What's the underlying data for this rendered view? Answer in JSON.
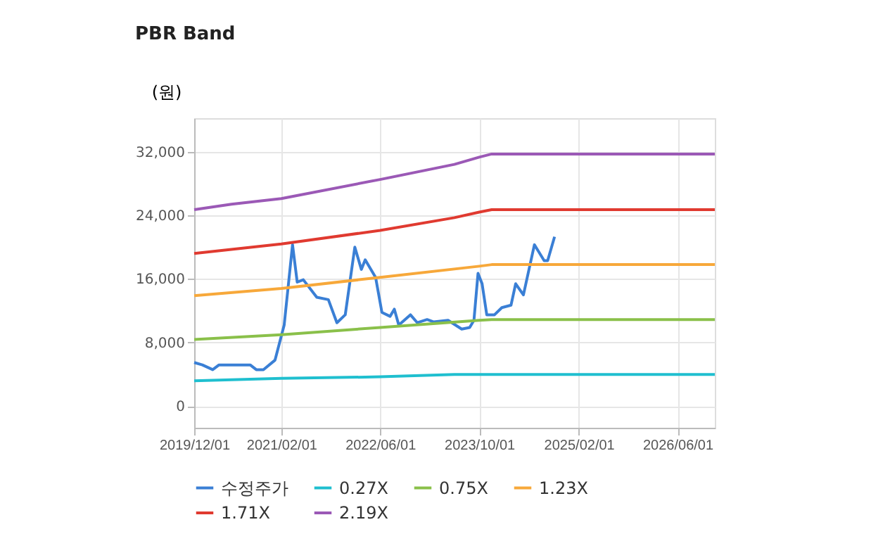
{
  "chart_data": {
    "type": "line",
    "title": "PBR Band",
    "ylabel": "(원)",
    "xlim": [
      "2019-12-01",
      "2026-12-01"
    ],
    "ylim": [
      -2700,
      36200
    ],
    "xticks": [
      {
        "value": "2019-12-01",
        "label": "2019/12/01"
      },
      {
        "value": "2021-02-01",
        "label": "2021/02/01"
      },
      {
        "value": "2022-06-01",
        "label": "2022/06/01"
      },
      {
        "value": "2023-10-01",
        "label": "2023/10/01"
      },
      {
        "value": "2025-02-01",
        "label": "2025/02/01"
      },
      {
        "value": "2026-06-01",
        "label": "2026/06/01"
      }
    ],
    "yticks": [
      0,
      {
        "value": 8000,
        "label": "8,000"
      },
      {
        "value": 16000,
        "label": "16,000"
      },
      {
        "value": 24000,
        "label": "24,000"
      },
      {
        "value": 32000,
        "label": "32,000"
      }
    ],
    "grid": true,
    "legend": "bottom",
    "marker": "none",
    "line_style": "solid",
    "series": [
      {
        "name": "수정주가",
        "color": "#3a7fd5",
        "x": [
          "2019-12-01",
          "2020-01-10",
          "2020-03-01",
          "2020-04-01",
          "2020-09-01",
          "2020-10-01",
          "2020-11-05",
          "2021-01-01",
          "2021-02-15",
          "2021-03-28",
          "2021-04-20",
          "2021-05-20",
          "2021-07-25",
          "2021-09-20",
          "2021-11-01",
          "2021-12-12",
          "2022-01-28",
          "2022-03-01",
          "2022-03-20",
          "2022-05-10",
          "2022-06-10",
          "2022-07-20",
          "2022-08-10",
          "2022-09-01",
          "2022-10-28",
          "2022-12-01",
          "2023-01-18",
          "2023-02-20",
          "2023-05-01",
          "2023-07-07",
          "2023-08-15",
          "2023-09-05",
          "2023-09-25",
          "2023-10-15",
          "2023-11-07",
          "2023-12-15",
          "2024-01-20",
          "2024-03-05",
          "2024-03-28",
          "2024-05-05",
          "2024-06-28",
          "2024-08-15",
          "2024-09-01",
          "2024-10-05"
        ],
        "values": [
          5500,
          5200,
          4600,
          5200,
          5200,
          4600,
          4600,
          5800,
          10200,
          20300,
          15600,
          15900,
          13700,
          13400,
          10500,
          11500,
          20000,
          17200,
          18400,
          16200,
          11800,
          11300,
          12200,
          10200,
          11500,
          10500,
          10900,
          10600,
          10800,
          9700,
          9900,
          10800,
          16700,
          15400,
          11500,
          11500,
          12400,
          12700,
          15400,
          14000,
          20300,
          18300,
          18300,
          21300
        ]
      },
      {
        "name": "0.27X",
        "color": "#1fbfcf",
        "x": [
          "2019-12-01",
          "2021-02-01",
          "2022-06-01",
          "2023-06-01",
          "2026-12-01"
        ],
        "values": [
          3200,
          3500,
          3700,
          4000,
          4000
        ]
      },
      {
        "name": "0.75X",
        "color": "#8ac04a",
        "x": [
          "2019-12-01",
          "2021-02-01",
          "2022-06-01",
          "2023-10-01",
          "2023-12-01",
          "2026-12-01"
        ],
        "values": [
          8400,
          9000,
          9900,
          10800,
          10900,
          10900
        ]
      },
      {
        "name": "1.23X",
        "color": "#f7a83a",
        "x": [
          "2019-12-01",
          "2021-02-01",
          "2022-06-01",
          "2023-10-01",
          "2023-12-01",
          "2026-12-01"
        ],
        "values": [
          13900,
          14800,
          16200,
          17600,
          17800,
          17800
        ]
      },
      {
        "name": "1.71X",
        "color": "#e03a30",
        "x": [
          "2019-12-01",
          "2021-02-01",
          "2022-06-01",
          "2023-06-01",
          "2023-10-01",
          "2023-12-01",
          "2026-12-01"
        ],
        "values": [
          19200,
          20400,
          22100,
          23700,
          24400,
          24700,
          24700
        ]
      },
      {
        "name": "2.19X",
        "color": "#9b59b6",
        "x": [
          "2019-12-01",
          "2020-06-01",
          "2021-02-01",
          "2022-06-01",
          "2023-06-01",
          "2023-10-01",
          "2023-12-01",
          "2026-12-01"
        ],
        "values": [
          24700,
          25400,
          26100,
          28500,
          30400,
          31300,
          31700,
          31700
        ]
      }
    ]
  }
}
